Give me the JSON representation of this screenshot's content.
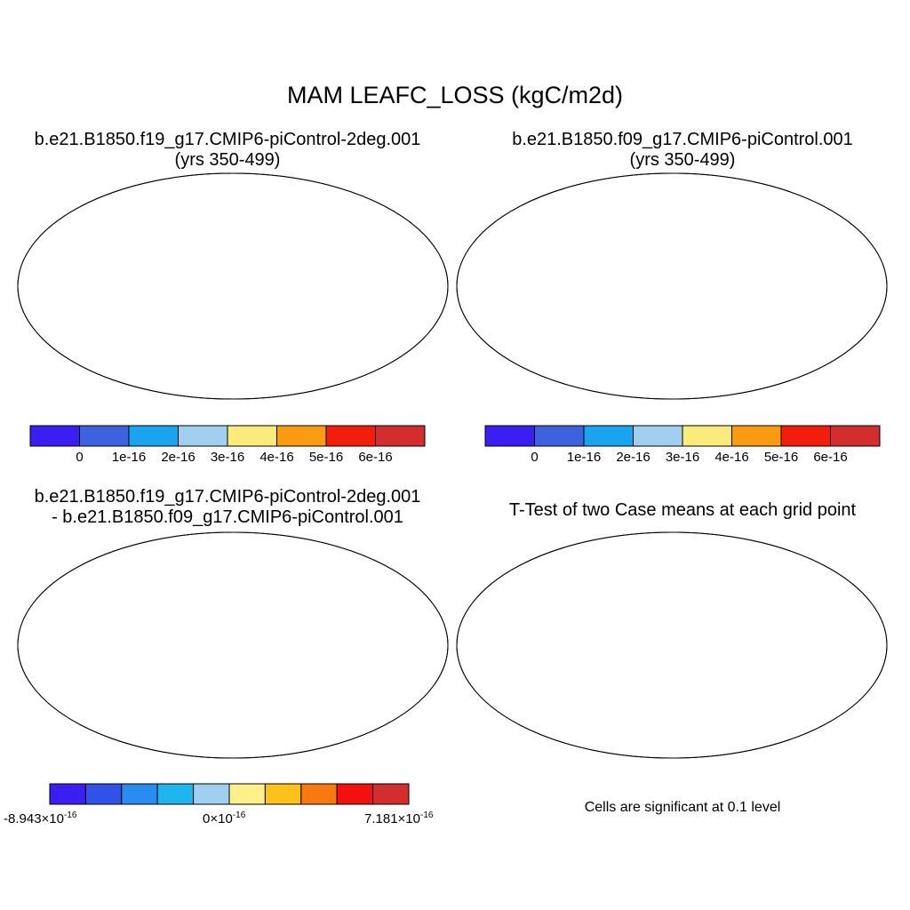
{
  "title": "MAM LEAFC_LOSS (kgC/m2d)",
  "panels": {
    "top_left": {
      "title_line1": "b.e21.B1850.f19_g17.CMIP6-piControl-2deg.001",
      "title_line2": "(yrs 350-499)",
      "colorbar": {
        "colors": [
          "#3b1ff2",
          "#3c62de",
          "#1aa3ef",
          "#a0cff0",
          "#fbea7c",
          "#f99c12",
          "#f21d0a",
          "#d42d2d"
        ],
        "labels": [
          "0",
          "1e-16",
          "2e-16",
          "3e-16",
          "4e-16",
          "5e-16",
          "6e-16"
        ]
      }
    },
    "top_right": {
      "title_line1": "b.e21.B1850.f09_g17.CMIP6-piControl.001",
      "title_line2": "(yrs 350-499)",
      "colorbar": {
        "colors": [
          "#3b1ff2",
          "#3c62de",
          "#1aa3ef",
          "#a0cff0",
          "#fbea7c",
          "#f99c12",
          "#f21d0a",
          "#d42d2d"
        ],
        "labels": [
          "0",
          "1e-16",
          "2e-16",
          "3e-16",
          "4e-16",
          "5e-16",
          "6e-16"
        ]
      }
    },
    "bottom_left": {
      "title_line1": "b.e21.B1850.f19_g17.CMIP6-piControl-2deg.001",
      "title_line2": "- b.e21.B1850.f09_g17.CMIP6-piControl.001",
      "colorbar": {
        "colors": [
          "#3b1ff2",
          "#3152e6",
          "#2a8cf0",
          "#1fb6ef",
          "#a0cff0",
          "#fff08a",
          "#fbc21c",
          "#f87a0f",
          "#f51010",
          "#d32d2d"
        ],
        "label_left_base": "-8.943×10",
        "label_left_exp": "-16",
        "label_mid_base": "0×10",
        "label_mid_exp": "-16",
        "label_right_base": "7.181×10",
        "label_right_exp": "-16"
      }
    },
    "bottom_right": {
      "title": "T-Test of two Case means at each grid point",
      "note": "Cells are significant at 0.1 level",
      "significant_color": "#f20000"
    }
  },
  "land_colors": {
    "base_blue": "#3c62de",
    "tropics_red": "#d42d2d",
    "tropics_yellow": "#fbea7c",
    "light_blue": "#a0cff0",
    "diff_yellow": "#fff08a",
    "diff_lightblue": "#a0cff0",
    "diff_orange": "#fbc21c",
    "diff_blue": "#3152e6",
    "antarctica_blue": "#3c62de",
    "antarctica_yellow": "#fff08a"
  }
}
